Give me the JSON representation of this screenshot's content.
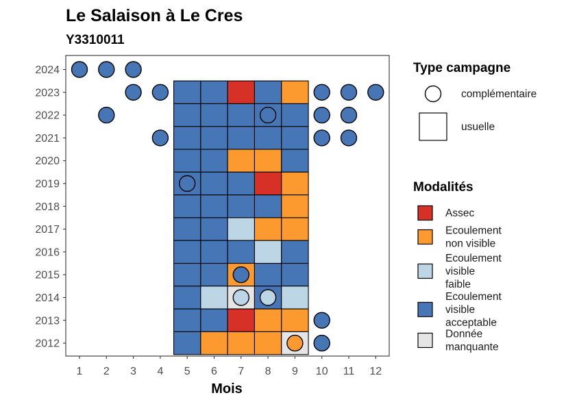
{
  "chart_data": {
    "type": "heatmap",
    "title": "Le Salaison à Le Cres",
    "subtitle": "Y3310011",
    "xlabel": "Mois",
    "ylabel": "",
    "x_categories": [
      "1",
      "2",
      "3",
      "4",
      "5",
      "6",
      "7",
      "8",
      "9",
      "10",
      "11",
      "12"
    ],
    "y_categories": [
      "2012",
      "2013",
      "2014",
      "2015",
      "2016",
      "2017",
      "2018",
      "2019",
      "2020",
      "2021",
      "2022",
      "2023",
      "2024"
    ],
    "grid": false,
    "colors": {
      "Assec": "#d73027",
      "Ecoulement non visible": "#fd9a2f",
      "Ecoulement visible faible": "#bcd6e6",
      "Ecoulement visible acceptable": "#4676b5",
      "Donnée manquante": "#e5e5e5"
    },
    "legend_campagne": {
      "title": "Type campagne",
      "entries": [
        {
          "label": "complémentaire",
          "shape": "circle"
        },
        {
          "label": "usuelle",
          "shape": "square"
        }
      ]
    },
    "legend_modalites": {
      "title": "Modalités",
      "entries": [
        {
          "key": "Assec",
          "lines": [
            "Assec"
          ]
        },
        {
          "key": "Ecoulement non visible",
          "lines": [
            "Ecoulement",
            "non visible"
          ]
        },
        {
          "key": "Ecoulement visible faible",
          "lines": [
            "Ecoulement",
            "visible",
            "faible"
          ]
        },
        {
          "key": "Ecoulement visible acceptable",
          "lines": [
            "Ecoulement",
            "visible",
            "acceptable"
          ]
        },
        {
          "key": "Donnée manquante",
          "lines": [
            "Donnée",
            "manquante"
          ]
        }
      ]
    },
    "usuelle": [
      {
        "year": "2023",
        "month": 5,
        "modalite": "Ecoulement visible acceptable"
      },
      {
        "year": "2023",
        "month": 6,
        "modalite": "Ecoulement visible acceptable"
      },
      {
        "year": "2023",
        "month": 7,
        "modalite": "Assec"
      },
      {
        "year": "2023",
        "month": 8,
        "modalite": "Ecoulement visible acceptable"
      },
      {
        "year": "2023",
        "month": 9,
        "modalite": "Ecoulement non visible"
      },
      {
        "year": "2022",
        "month": 5,
        "modalite": "Ecoulement visible acceptable"
      },
      {
        "year": "2022",
        "month": 6,
        "modalite": "Ecoulement visible acceptable"
      },
      {
        "year": "2022",
        "month": 7,
        "modalite": "Ecoulement visible acceptable"
      },
      {
        "year": "2022",
        "month": 8,
        "modalite": "Ecoulement visible acceptable"
      },
      {
        "year": "2022",
        "month": 9,
        "modalite": "Ecoulement visible acceptable"
      },
      {
        "year": "2021",
        "month": 5,
        "modalite": "Ecoulement visible acceptable"
      },
      {
        "year": "2021",
        "month": 6,
        "modalite": "Ecoulement visible acceptable"
      },
      {
        "year": "2021",
        "month": 7,
        "modalite": "Ecoulement visible acceptable"
      },
      {
        "year": "2021",
        "month": 8,
        "modalite": "Ecoulement visible acceptable"
      },
      {
        "year": "2021",
        "month": 9,
        "modalite": "Ecoulement visible acceptable"
      },
      {
        "year": "2020",
        "month": 5,
        "modalite": "Ecoulement visible acceptable"
      },
      {
        "year": "2020",
        "month": 6,
        "modalite": "Ecoulement visible acceptable"
      },
      {
        "year": "2020",
        "month": 7,
        "modalite": "Ecoulement non visible"
      },
      {
        "year": "2020",
        "month": 8,
        "modalite": "Ecoulement non visible"
      },
      {
        "year": "2020",
        "month": 9,
        "modalite": "Ecoulement visible acceptable"
      },
      {
        "year": "2019",
        "month": 5,
        "modalite": "Ecoulement visible acceptable"
      },
      {
        "year": "2019",
        "month": 6,
        "modalite": "Ecoulement visible acceptable"
      },
      {
        "year": "2019",
        "month": 7,
        "modalite": "Ecoulement visible acceptable"
      },
      {
        "year": "2019",
        "month": 8,
        "modalite": "Assec"
      },
      {
        "year": "2019",
        "month": 9,
        "modalite": "Ecoulement non visible"
      },
      {
        "year": "2018",
        "month": 5,
        "modalite": "Ecoulement visible acceptable"
      },
      {
        "year": "2018",
        "month": 6,
        "modalite": "Ecoulement visible acceptable"
      },
      {
        "year": "2018",
        "month": 7,
        "modalite": "Ecoulement visible acceptable"
      },
      {
        "year": "2018",
        "month": 8,
        "modalite": "Ecoulement visible acceptable"
      },
      {
        "year": "2018",
        "month": 9,
        "modalite": "Ecoulement non visible"
      },
      {
        "year": "2017",
        "month": 5,
        "modalite": "Ecoulement visible acceptable"
      },
      {
        "year": "2017",
        "month": 6,
        "modalite": "Ecoulement visible acceptable"
      },
      {
        "year": "2017",
        "month": 7,
        "modalite": "Ecoulement visible faible"
      },
      {
        "year": "2017",
        "month": 8,
        "modalite": "Ecoulement non visible"
      },
      {
        "year": "2017",
        "month": 9,
        "modalite": "Ecoulement non visible"
      },
      {
        "year": "2016",
        "month": 5,
        "modalite": "Ecoulement visible acceptable"
      },
      {
        "year": "2016",
        "month": 6,
        "modalite": "Ecoulement visible acceptable"
      },
      {
        "year": "2016",
        "month": 7,
        "modalite": "Ecoulement visible acceptable"
      },
      {
        "year": "2016",
        "month": 8,
        "modalite": "Ecoulement visible faible"
      },
      {
        "year": "2016",
        "month": 9,
        "modalite": "Ecoulement visible acceptable"
      },
      {
        "year": "2015",
        "month": 5,
        "modalite": "Ecoulement visible acceptable"
      },
      {
        "year": "2015",
        "month": 6,
        "modalite": "Ecoulement visible acceptable"
      },
      {
        "year": "2015",
        "month": 7,
        "modalite": "Ecoulement non visible"
      },
      {
        "year": "2015",
        "month": 8,
        "modalite": "Ecoulement visible acceptable"
      },
      {
        "year": "2015",
        "month": 9,
        "modalite": "Ecoulement visible acceptable"
      },
      {
        "year": "2014",
        "month": 5,
        "modalite": "Ecoulement visible acceptable"
      },
      {
        "year": "2014",
        "month": 6,
        "modalite": "Ecoulement visible faible"
      },
      {
        "year": "2014",
        "month": 7,
        "modalite": "Donnée manquante"
      },
      {
        "year": "2014",
        "month": 8,
        "modalite": "Ecoulement visible acceptable"
      },
      {
        "year": "2014",
        "month": 9,
        "modalite": "Ecoulement visible faible"
      },
      {
        "year": "2013",
        "month": 5,
        "modalite": "Ecoulement visible acceptable"
      },
      {
        "year": "2013",
        "month": 6,
        "modalite": "Ecoulement visible acceptable"
      },
      {
        "year": "2013",
        "month": 7,
        "modalite": "Assec"
      },
      {
        "year": "2013",
        "month": 8,
        "modalite": "Ecoulement non visible"
      },
      {
        "year": "2013",
        "month": 9,
        "modalite": "Ecoulement non visible"
      },
      {
        "year": "2012",
        "month": 5,
        "modalite": "Ecoulement visible acceptable"
      },
      {
        "year": "2012",
        "month": 6,
        "modalite": "Ecoulement non visible"
      },
      {
        "year": "2012",
        "month": 7,
        "modalite": "Ecoulement non visible"
      },
      {
        "year": "2012",
        "month": 8,
        "modalite": "Ecoulement non visible"
      },
      {
        "year": "2012",
        "month": 9,
        "modalite": "Donnée manquante"
      }
    ],
    "complementaire": [
      {
        "year": "2024",
        "month": 1,
        "modalite": "Ecoulement visible acceptable"
      },
      {
        "year": "2024",
        "month": 2,
        "modalite": "Ecoulement visible acceptable"
      },
      {
        "year": "2024",
        "month": 3,
        "modalite": "Ecoulement visible acceptable"
      },
      {
        "year": "2023",
        "month": 3,
        "modalite": "Ecoulement visible acceptable"
      },
      {
        "year": "2023",
        "month": 4,
        "modalite": "Ecoulement visible acceptable"
      },
      {
        "year": "2023",
        "month": 10,
        "modalite": "Ecoulement visible acceptable"
      },
      {
        "year": "2023",
        "month": 11,
        "modalite": "Ecoulement visible acceptable"
      },
      {
        "year": "2023",
        "month": 12,
        "modalite": "Ecoulement visible acceptable"
      },
      {
        "year": "2022",
        "month": 2,
        "modalite": "Ecoulement visible acceptable"
      },
      {
        "year": "2022",
        "month": 8,
        "modalite": "Ecoulement visible acceptable"
      },
      {
        "year": "2022",
        "month": 10,
        "modalite": "Ecoulement visible acceptable"
      },
      {
        "year": "2022",
        "month": 11,
        "modalite": "Ecoulement visible acceptable"
      },
      {
        "year": "2021",
        "month": 4,
        "modalite": "Ecoulement visible acceptable"
      },
      {
        "year": "2021",
        "month": 10,
        "modalite": "Ecoulement visible acceptable"
      },
      {
        "year": "2021",
        "month": 11,
        "modalite": "Ecoulement visible acceptable"
      },
      {
        "year": "2019",
        "month": 5,
        "modalite": "Ecoulement visible acceptable"
      },
      {
        "year": "2015",
        "month": 7,
        "modalite": "Ecoulement visible acceptable"
      },
      {
        "year": "2014",
        "month": 7,
        "modalite": "Ecoulement visible faible"
      },
      {
        "year": "2014",
        "month": 8,
        "modalite": "Ecoulement visible faible"
      },
      {
        "year": "2013",
        "month": 10,
        "modalite": "Ecoulement visible acceptable"
      },
      {
        "year": "2012",
        "month": 9,
        "modalite": "Ecoulement non visible"
      },
      {
        "year": "2012",
        "month": 10,
        "modalite": "Ecoulement visible acceptable"
      }
    ]
  }
}
